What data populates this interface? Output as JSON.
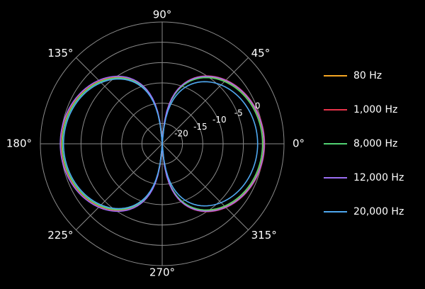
{
  "chart_data": {
    "type": "polar-line",
    "title": "",
    "angle_unit": "deg",
    "angle_ticks": [
      {
        "deg": 0,
        "label": "0°"
      },
      {
        "deg": 45,
        "label": "45°"
      },
      {
        "deg": 90,
        "label": "90°"
      },
      {
        "deg": 135,
        "label": "135°"
      },
      {
        "deg": 180,
        "label": "180°"
      },
      {
        "deg": 225,
        "label": "225°"
      },
      {
        "deg": 270,
        "label": "270°"
      },
      {
        "deg": 315,
        "label": "315°"
      }
    ],
    "radial_range_db": [
      -25,
      5
    ],
    "radial_ticks": [
      {
        "value": -20,
        "label": "-20"
      },
      {
        "value": -15,
        "label": "-15"
      },
      {
        "value": -10,
        "label": "-10"
      },
      {
        "value": -5,
        "label": "-5"
      },
      {
        "value": 0,
        "label": "0"
      }
    ],
    "pattern": "figure-8",
    "legend_position": "right",
    "grid": true,
    "colors": {
      "background": "#000000",
      "grid": "#8a8a8a",
      "text": "#ffffff"
    },
    "series": [
      {
        "name": "80 Hz",
        "color": "#f5a623",
        "gain_db": 0.0,
        "back_gain_db": -0.3
      },
      {
        "name": "1,000 Hz",
        "color": "#e8334a",
        "gain_db": 0.2,
        "back_gain_db": 0.0
      },
      {
        "name": "8,000 Hz",
        "color": "#52d273",
        "gain_db": -0.3,
        "back_gain_db": -0.4
      },
      {
        "name": "12,000 Hz",
        "color": "#9b6ef3",
        "gain_db": 0.1,
        "back_gain_db": 0.1
      },
      {
        "name": "20,000 Hz",
        "color": "#4fa8f0",
        "gain_db": -1.5,
        "back_gain_db": -0.7
      }
    ]
  }
}
